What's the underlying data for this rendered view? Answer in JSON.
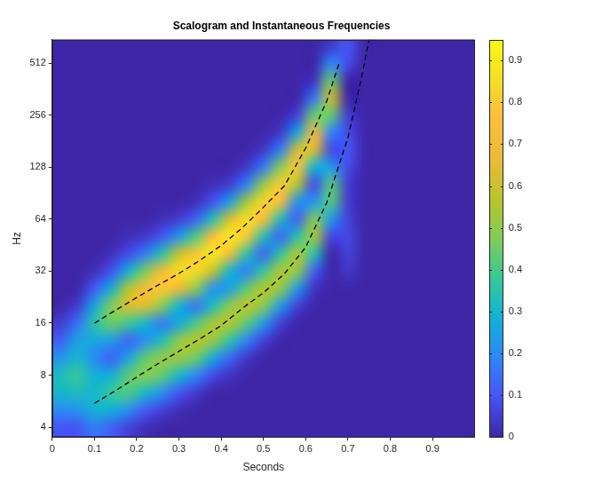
{
  "chart_data": {
    "type": "heatmap",
    "title": "Scalogram and Instantaneous Frequencies",
    "x_label": "Seconds",
    "y_label": "Hz",
    "log": "y",
    "grid": false,
    "xlim": [
      0,
      1
    ],
    "xticks": [
      0,
      0.1,
      0.2,
      0.3,
      0.4,
      0.5,
      0.6,
      0.7,
      0.8,
      0.9
    ],
    "ylim": [
      3.5,
      700
    ],
    "yticks": [
      4,
      8,
      16,
      32,
      64,
      128,
      256,
      512
    ],
    "cells": {
      "x": [
        0.02,
        0.06,
        0.1,
        0.14,
        0.18,
        0.22,
        0.26,
        0.3,
        0.34,
        0.38,
        0.42,
        0.46,
        0.5,
        0.54,
        0.58,
        0.62,
        0.66,
        0.7,
        0.74,
        0.78,
        0.82,
        0.86,
        0.9,
        0.94,
        0.98
      ],
      "y": [
        4,
        5.04,
        6.35,
        8,
        10.08,
        12.7,
        16,
        20.16,
        25.4,
        32,
        40.32,
        50.8,
        64,
        80.63,
        101.59,
        128,
        161.27,
        203.19,
        256,
        322.54,
        406.37,
        512,
        645.08
      ],
      "z": [
        [
          0.1,
          0.2,
          0.3,
          0.32,
          0.22,
          0.12,
          0.05,
          0,
          0,
          0,
          0,
          0,
          0,
          0,
          0,
          0,
          0,
          0,
          0,
          0,
          0,
          0,
          0
        ],
        [
          0.1,
          0.22,
          0.32,
          0.38,
          0.3,
          0.25,
          0.15,
          0.05,
          0,
          0,
          0,
          0,
          0,
          0,
          0,
          0,
          0,
          0,
          0,
          0,
          0,
          0,
          0
        ],
        [
          0.17,
          0.29,
          0.3,
          0.28,
          0.2,
          0.26,
          0.35,
          0.26,
          0.11,
          0.02,
          0,
          0,
          0,
          0,
          0,
          0,
          0,
          0,
          0,
          0,
          0,
          0,
          0
        ],
        [
          0.12,
          0.28,
          0.38,
          0.28,
          0.12,
          0.24,
          0.45,
          0.48,
          0.28,
          0.09,
          0.02,
          0,
          0,
          0,
          0,
          0,
          0,
          0,
          0,
          0,
          0,
          0,
          0
        ],
        [
          0.06,
          0.21,
          0.41,
          0.43,
          0.25,
          0.13,
          0.39,
          0.63,
          0.56,
          0.28,
          0.08,
          0.02,
          0,
          0,
          0,
          0,
          0,
          0,
          0,
          0,
          0,
          0,
          0
        ],
        [
          0.02,
          0.11,
          0.31,
          0.49,
          0.43,
          0.21,
          0.3,
          0.64,
          0.73,
          0.47,
          0.17,
          0.04,
          0,
          0,
          0,
          0,
          0,
          0,
          0,
          0,
          0,
          0,
          0
        ],
        [
          0,
          0.06,
          0.21,
          0.44,
          0.51,
          0.33,
          0.17,
          0.49,
          0.8,
          0.71,
          0.35,
          0.1,
          0.02,
          0,
          0,
          0,
          0,
          0,
          0,
          0,
          0,
          0,
          0
        ],
        [
          0,
          0.02,
          0.1,
          0.31,
          0.52,
          0.5,
          0.26,
          0.29,
          0.67,
          0.85,
          0.6,
          0.23,
          0.05,
          0,
          0,
          0,
          0,
          0,
          0,
          0,
          0,
          0,
          0
        ],
        [
          0,
          0,
          0.05,
          0.19,
          0.45,
          0.57,
          0.4,
          0.16,
          0.49,
          0.84,
          0.79,
          0.41,
          0.12,
          0.02,
          0,
          0,
          0,
          0,
          0,
          0,
          0,
          0,
          0
        ],
        [
          0,
          0,
          0,
          0.08,
          0.27,
          0.52,
          0.55,
          0.32,
          0.21,
          0.59,
          0.89,
          0.75,
          0.34,
          0.09,
          0.02,
          0,
          0,
          0,
          0,
          0,
          0,
          0,
          0
        ],
        [
          0,
          0,
          0,
          0.03,
          0.13,
          0.36,
          0.56,
          0.5,
          0.24,
          0.3,
          0.71,
          0.9,
          0.63,
          0.24,
          0.05,
          0,
          0,
          0,
          0,
          0,
          0,
          0,
          0
        ],
        [
          0,
          0,
          0,
          0,
          0.04,
          0.18,
          0.43,
          0.58,
          0.43,
          0.18,
          0.36,
          0.78,
          0.86,
          0.53,
          0.18,
          0.04,
          0,
          0,
          0,
          0,
          0,
          0,
          0
        ],
        [
          0,
          0,
          0,
          0,
          0,
          0.06,
          0.23,
          0.49,
          0.57,
          0.37,
          0.13,
          0.34,
          0.75,
          0.83,
          0.51,
          0.17,
          0.04,
          0,
          0,
          0,
          0,
          0,
          0
        ],
        [
          0,
          0,
          0,
          0,
          0,
          0,
          0.06,
          0.23,
          0.51,
          0.56,
          0.36,
          0.13,
          0.33,
          0.72,
          0.8,
          0.49,
          0.17,
          0.04,
          0,
          0,
          0,
          0,
          0
        ],
        [
          0,
          0,
          0,
          0,
          0,
          0,
          0,
          0.06,
          0.23,
          0.5,
          0.56,
          0.35,
          0.12,
          0.21,
          0.55,
          0.78,
          0.62,
          0.25,
          0.06,
          0,
          0,
          0,
          0
        ],
        [
          0,
          0,
          0,
          0,
          0,
          0,
          0,
          0,
          0.03,
          0.12,
          0.35,
          0.54,
          0.48,
          0.22,
          0.08,
          0.29,
          0.63,
          0.7,
          0.45,
          0.16,
          0.03,
          0,
          0
        ],
        [
          0,
          0,
          0,
          0,
          0,
          0,
          0,
          0,
          0,
          0,
          0,
          0.07,
          0.23,
          0.42,
          0.42,
          0.23,
          0.07,
          0.19,
          0.44,
          0.6,
          0.44,
          0.19,
          0.04
        ],
        [
          0,
          0,
          0,
          0,
          0,
          0,
          0,
          0,
          0,
          0.04,
          0.06,
          0.07,
          0.06,
          0.05,
          0.05,
          0.08,
          0.1,
          0.08,
          0.05,
          0,
          0,
          0.08,
          0.1
        ],
        [
          0,
          0,
          0,
          0,
          0,
          0,
          0,
          0,
          0,
          0,
          0,
          0,
          0,
          0,
          0,
          0,
          0,
          0,
          0,
          0,
          0,
          0,
          0
        ],
        [
          0,
          0,
          0,
          0,
          0,
          0,
          0,
          0,
          0,
          0,
          0,
          0,
          0,
          0,
          0,
          0,
          0,
          0,
          0,
          0,
          0,
          0,
          0
        ],
        [
          0,
          0,
          0,
          0,
          0,
          0,
          0,
          0,
          0,
          0,
          0,
          0,
          0,
          0,
          0,
          0,
          0,
          0,
          0,
          0,
          0,
          0,
          0
        ],
        [
          0,
          0,
          0,
          0,
          0,
          0,
          0,
          0,
          0,
          0,
          0,
          0,
          0,
          0,
          0,
          0,
          0,
          0,
          0,
          0,
          0,
          0,
          0
        ],
        [
          0,
          0,
          0,
          0,
          0,
          0,
          0,
          0,
          0,
          0,
          0,
          0,
          0,
          0,
          0,
          0,
          0,
          0,
          0,
          0,
          0,
          0,
          0
        ],
        [
          0,
          0,
          0,
          0,
          0,
          0,
          0,
          0,
          0,
          0,
          0,
          0,
          0,
          0,
          0,
          0,
          0,
          0,
          0,
          0,
          0,
          0,
          0
        ],
        [
          0,
          0,
          0,
          0,
          0,
          0,
          0,
          0,
          0,
          0,
          0,
          0,
          0,
          0,
          0,
          0,
          0,
          0,
          0,
          0,
          0,
          0,
          0
        ]
      ]
    },
    "colorbar": {
      "lim": [
        0,
        0.95
      ],
      "ticks": [
        0,
        0.1,
        0.2,
        0.3,
        0.4,
        0.5,
        0.6,
        0.7,
        0.8,
        0.9
      ]
    },
    "series": [
      {
        "type": "line",
        "color": "#000000",
        "line_style": "dashed",
        "x": [
          0.1,
          0.15,
          0.2,
          0.25,
          0.3,
          0.35,
          0.4,
          0.45,
          0.5,
          0.55,
          0.6,
          0.65,
          0.68
        ],
        "values": [
          16,
          19,
          22.5,
          26.5,
          31,
          37,
          45,
          57,
          75,
          100,
          165,
          310,
          520
        ]
      },
      {
        "type": "line",
        "color": "#000000",
        "line_style": "dashed",
        "x": [
          0.1,
          0.15,
          0.2,
          0.25,
          0.3,
          0.35,
          0.4,
          0.45,
          0.5,
          0.55,
          0.6,
          0.65,
          0.7,
          0.73,
          0.75
        ],
        "values": [
          5.5,
          6.5,
          7.8,
          9.3,
          11,
          13,
          15.5,
          19.5,
          24,
          31,
          44,
          80,
          190,
          400,
          700
        ]
      }
    ]
  }
}
